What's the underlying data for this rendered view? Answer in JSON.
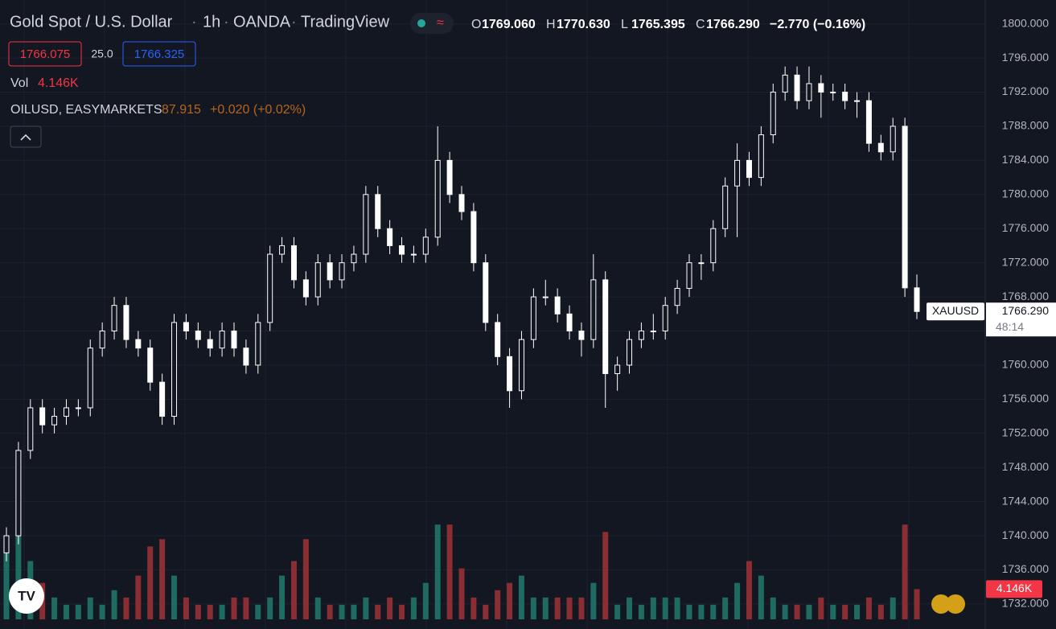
{
  "chart_data": {
    "type": "candlestick",
    "title": "Gold Spot / U.S. Dollar",
    "interval": "1h",
    "source": "OANDA",
    "platform": "TradingView",
    "ohlc_legend": [
      {
        "label": "O",
        "value": "1769.060"
      },
      {
        "label": "H",
        "value": "1770.630"
      },
      {
        "label": "L",
        "value": "1765.395"
      },
      {
        "label": "C",
        "value": "1766.290"
      }
    ],
    "change": "−2.770 (−0.16%)",
    "bid": "1766.075",
    "spread": "25.0",
    "ask": "1766.325",
    "volume_title": "Vol",
    "volume_label": "4.146K",
    "overlay_symbol": "OILUSD, EASYMARKETS",
    "overlay_price": "87.915",
    "overlay_change": "+0.020 (+0.02%)",
    "price_tag": {
      "symbol": "XAUUSD",
      "price": "1766.290",
      "countdown": "48:14"
    },
    "candle_color": "#ffffff",
    "volume_up_color": "#1f6b62",
    "volume_down_color": "#8a2e33",
    "open": [
      1738,
      1740,
      1750,
      1755,
      1753,
      1754,
      1755,
      1755,
      1762,
      1764,
      1767,
      1763,
      1762,
      1758,
      1754,
      1765,
      1764,
      1763,
      1762,
      1764,
      1762,
      1760,
      1765,
      1773,
      1774,
      1770,
      1768,
      1772,
      1770,
      1772,
      1773,
      1780,
      1776,
      1774,
      1773,
      1773,
      1775,
      1784,
      1780,
      1778,
      1772,
      1765,
      1761,
      1757,
      1763,
      1768,
      1768,
      1766,
      1764,
      1763,
      1770,
      1759,
      1760,
      1763,
      1764,
      1764,
      1767,
      1769,
      1772,
      1772,
      1776,
      1781,
      1784,
      1782,
      1787,
      1792,
      1794,
      1791,
      1793,
      1792,
      1792,
      1791,
      1791,
      1786,
      1785,
      1788,
      1769.06
    ],
    "high": [
      1741,
      1751,
      1756,
      1756,
      1755,
      1756,
      1756,
      1763,
      1765,
      1768,
      1768,
      1764,
      1763,
      1759,
      1766,
      1766,
      1765,
      1764,
      1765,
      1765,
      1763,
      1766,
      1774,
      1775,
      1775,
      1771,
      1773,
      1773,
      1773,
      1774,
      1781,
      1781,
      1777,
      1775,
      1774,
      1776,
      1788,
      1785,
      1781,
      1779,
      1773,
      1766,
      1762,
      1764,
      1769,
      1770,
      1769,
      1767,
      1765,
      1773,
      1771,
      1761,
      1764,
      1765,
      1766,
      1768,
      1770,
      1773,
      1773,
      1777,
      1782,
      1786,
      1785,
      1788,
      1793,
      1795,
      1795,
      1795,
      1794,
      1793,
      1793,
      1792,
      1792,
      1787,
      1789,
      1789,
      1770.63
    ],
    "low": [
      1737,
      1739,
      1749,
      1752,
      1752,
      1753,
      1754,
      1754,
      1761,
      1763,
      1762,
      1761,
      1757,
      1753,
      1753,
      1763,
      1762,
      1761,
      1761,
      1761,
      1759,
      1759,
      1764,
      1772,
      1769,
      1767,
      1767,
      1769,
      1769,
      1771,
      1772,
      1775,
      1773,
      1772,
      1772,
      1772,
      1774,
      1779,
      1777,
      1771,
      1764,
      1760,
      1755,
      1756,
      1762,
      1767,
      1765,
      1763,
      1761,
      1762,
      1755,
      1757,
      1759,
      1762,
      1763,
      1763,
      1766,
      1768,
      1770,
      1771,
      1775,
      1775,
      1781,
      1781,
      1786,
      1791,
      1790,
      1790,
      1789,
      1791,
      1790,
      1789,
      1785,
      1784,
      1784,
      1768,
      1765.395
    ],
    "close": [
      1740,
      1750,
      1755,
      1753,
      1754,
      1755,
      1755,
      1762,
      1764,
      1767,
      1763,
      1762,
      1758,
      1754,
      1765,
      1764,
      1763,
      1762,
      1764,
      1762,
      1760,
      1765,
      1773,
      1774,
      1770,
      1768,
      1772,
      1770,
      1772,
      1773,
      1780,
      1776,
      1774,
      1773,
      1773,
      1775,
      1784,
      1780,
      1778,
      1772,
      1765,
      1761,
      1757,
      1763,
      1768,
      1768,
      1766,
      1764,
      1763,
      1770,
      1759,
      1760,
      1763,
      1764,
      1764,
      1767,
      1769,
      1772,
      1772,
      1776,
      1781,
      1784,
      1782,
      1787,
      1792,
      1794,
      1791,
      1793,
      1792,
      1792,
      1791,
      1791,
      1786,
      1785,
      1788,
      1769.06,
      1766.29
    ],
    "volume": [
      10,
      13,
      8,
      5,
      3,
      2,
      2,
      3,
      2,
      4,
      3,
      6,
      10,
      11,
      6,
      3,
      2,
      2,
      2,
      3,
      3,
      2,
      3,
      6,
      8,
      11,
      3,
      2,
      2,
      2,
      3,
      2,
      3,
      2,
      3,
      5,
      13,
      13,
      7,
      3,
      2,
      4,
      5,
      6,
      3,
      3,
      3,
      3,
      3,
      5,
      12,
      2,
      3,
      2,
      3,
      3,
      3,
      2,
      2,
      2,
      3,
      5,
      8,
      6,
      3,
      2,
      2,
      2,
      3,
      2,
      2,
      2,
      3,
      2,
      3,
      13,
      4.146
    ],
    "ylim": [
      1730.2,
      1802.8
    ],
    "volume_lim": [
      0,
      16
    ],
    "yticks": [
      {
        "value": 1732,
        "label": "1732.000"
      },
      {
        "value": 1736,
        "label": "1736.000"
      },
      {
        "value": 1740,
        "label": "1740.000"
      },
      {
        "value": 1744,
        "label": "1744.000"
      },
      {
        "value": 1748,
        "label": "1748.000"
      },
      {
        "value": 1752,
        "label": "1752.000"
      },
      {
        "value": 1756,
        "label": "1756.000"
      },
      {
        "value": 1760,
        "label": "1760.000"
      },
      {
        "value": 1764,
        "label": "1764.000"
      },
      {
        "value": 1768,
        "label": "1768.000"
      },
      {
        "value": 1772,
        "label": "1772.000"
      },
      {
        "value": 1776,
        "label": "1776.000"
      },
      {
        "value": 1780,
        "label": "1780.000"
      },
      {
        "value": 1784,
        "label": "1784.000"
      },
      {
        "value": 1788,
        "label": "1788.000"
      },
      {
        "value": 1792,
        "label": "1792.000"
      },
      {
        "value": 1796,
        "label": "1796.000"
      },
      {
        "value": 1800,
        "label": "1800.000"
      }
    ],
    "grid": true
  }
}
